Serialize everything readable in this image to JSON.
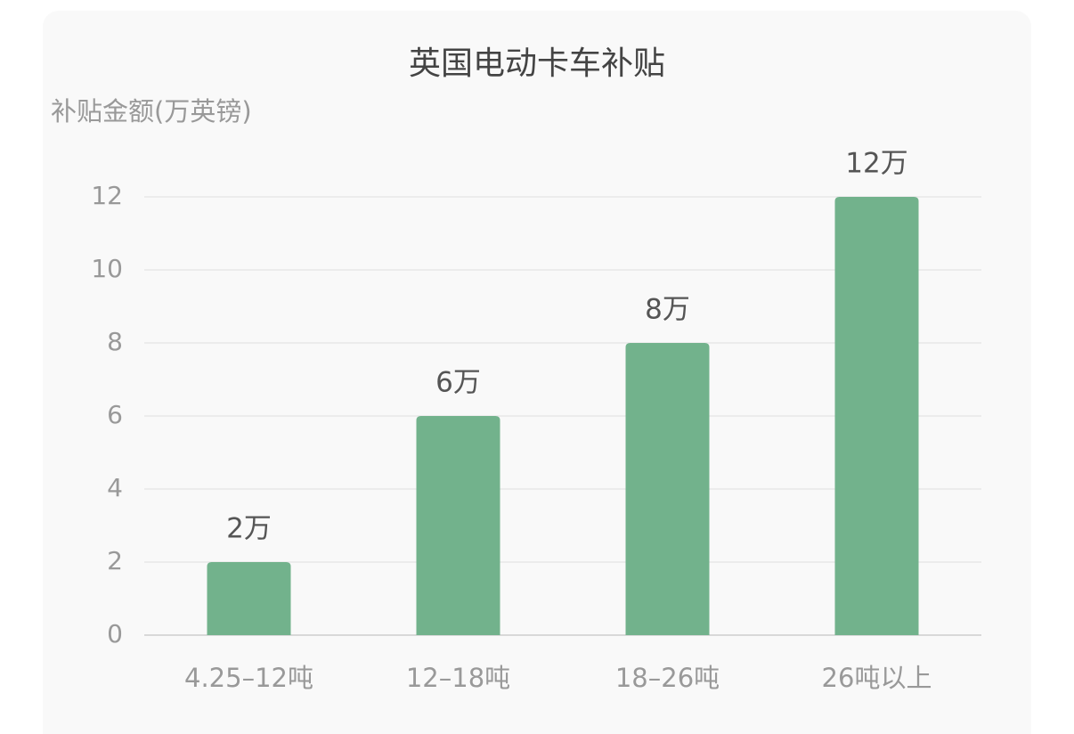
{
  "chart_data": {
    "type": "bar",
    "title": "英国电动卡车补贴",
    "y_label": "补贴金额(万英镑)",
    "categories": [
      "4.25–12吨",
      "12–18吨",
      "18–26吨",
      "26吨以上"
    ],
    "values": [
      2,
      6,
      8,
      12
    ],
    "value_labels": [
      "2万",
      "6万",
      "8万",
      "12万"
    ],
    "color": "#72b28c",
    "ylim": [
      0,
      12
    ],
    "yticks": [
      0,
      2,
      4,
      6,
      8,
      10,
      12
    ],
    "grid": true
  }
}
